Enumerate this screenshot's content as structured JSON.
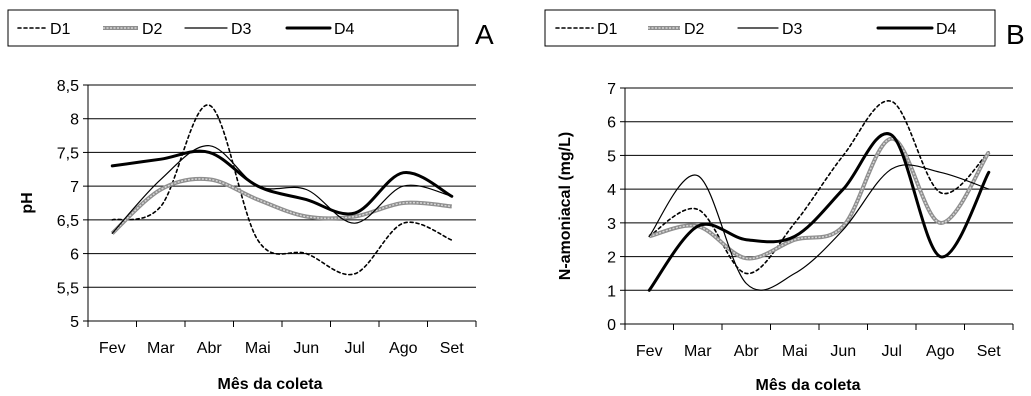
{
  "chart_data": [
    {
      "type": "line",
      "panel_label": "A",
      "categories": [
        "Fev",
        "Mar",
        "Abr",
        "Mai",
        "Jun",
        "Jul",
        "Ago",
        "Set"
      ],
      "xlabel": "Mês da coleta",
      "ylabel": "pH",
      "ylim": [
        5,
        8.5
      ],
      "yticks": [
        5,
        5.5,
        6,
        6.5,
        7,
        7.5,
        8,
        8.5
      ],
      "ytick_labels": [
        "5",
        "5,5",
        "6",
        "6,5",
        "7",
        "7,5",
        "8",
        "8,5"
      ],
      "grid": true,
      "legend": "top",
      "series": [
        {
          "name": "D1",
          "style": "dotted",
          "color": "#000000",
          "values": [
            6.5,
            6.7,
            8.2,
            6.2,
            6.0,
            5.7,
            6.45,
            6.2
          ]
        },
        {
          "name": "D2",
          "style": "gray-thick",
          "color": "#999999",
          "values": [
            6.3,
            6.95,
            7.1,
            6.8,
            6.55,
            6.55,
            6.75,
            6.7
          ]
        },
        {
          "name": "D3",
          "style": "thin",
          "color": "#000000",
          "values": [
            6.3,
            7.1,
            7.6,
            7.0,
            6.95,
            6.45,
            7.0,
            6.85
          ]
        },
        {
          "name": "D4",
          "style": "thick",
          "color": "#000000",
          "values": [
            7.3,
            7.4,
            7.5,
            7.0,
            6.8,
            6.6,
            7.2,
            6.85
          ]
        }
      ]
    },
    {
      "type": "line",
      "panel_label": "B",
      "categories": [
        "Fev",
        "Mar",
        "Abr",
        "Mai",
        "Jun",
        "Jul",
        "Ago",
        "Set"
      ],
      "xlabel": "Mês da coleta",
      "ylabel": "N-amoniacal (mg/L)",
      "ylim": [
        0,
        7
      ],
      "yticks": [
        0,
        1,
        2,
        3,
        4,
        5,
        6,
        7
      ],
      "ytick_labels": [
        "0",
        "1",
        "2",
        "3",
        "4",
        "5",
        "6",
        "7"
      ],
      "grid": true,
      "legend": "top",
      "series": [
        {
          "name": "D1",
          "style": "dotted",
          "color": "#000000",
          "values": [
            2.6,
            3.4,
            1.5,
            3.0,
            5.0,
            6.6,
            3.9,
            5.1
          ]
        },
        {
          "name": "D2",
          "style": "gray-thick",
          "color": "#999999",
          "values": [
            2.6,
            2.9,
            1.95,
            2.5,
            2.9,
            5.5,
            3.0,
            5.1
          ]
        },
        {
          "name": "D3",
          "style": "thin",
          "color": "#000000",
          "values": [
            2.6,
            4.4,
            1.2,
            1.5,
            2.8,
            4.6,
            4.5,
            4.0
          ]
        },
        {
          "name": "D4",
          "style": "thick",
          "color": "#000000",
          "values": [
            1.0,
            2.9,
            2.5,
            2.6,
            4.0,
            5.6,
            2.0,
            4.5
          ]
        }
      ]
    }
  ]
}
